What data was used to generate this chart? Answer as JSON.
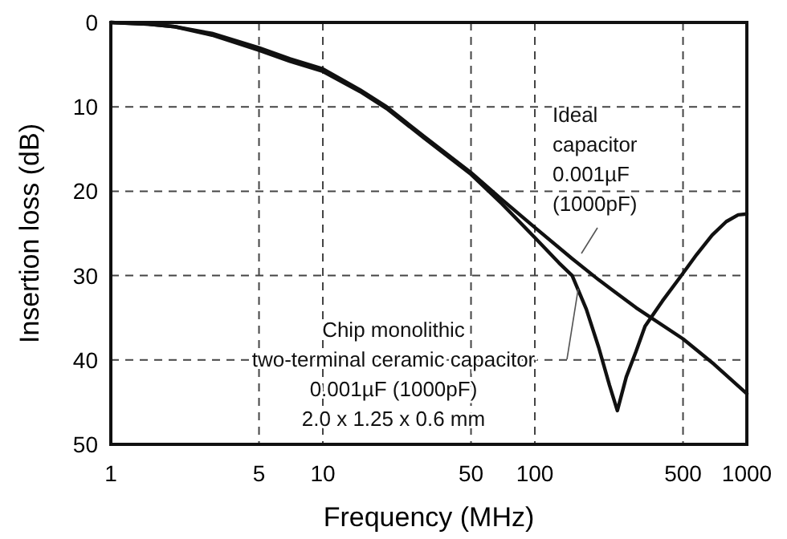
{
  "chart_data": {
    "type": "line",
    "xlabel": "Frequency (MHz)",
    "ylabel": "Insertion loss (dB)",
    "log": "x",
    "xlim": [
      1,
      1000
    ],
    "xticks": [
      1,
      5,
      10,
      50,
      100,
      500,
      1000
    ],
    "ylim": [
      50,
      0
    ],
    "yticks": [
      0,
      10,
      20,
      30,
      40,
      50
    ],
    "grid": true,
    "line_style": "solid",
    "series": [
      {
        "color": "#111111",
        "x": [
          1,
          1.5,
          2,
          3,
          5,
          7,
          10,
          15,
          20,
          30,
          50,
          70,
          100,
          150,
          200,
          300,
          500,
          700,
          1000
        ],
        "values": [
          0,
          0.2,
          0.5,
          1.3,
          3,
          4.3,
          5.5,
          8,
          10,
          13.5,
          17.8,
          21,
          24.3,
          28,
          30.5,
          33.8,
          37.5,
          40.5,
          44
        ]
      },
      {
        "color": "#111111",
        "x": [
          1,
          1.5,
          2,
          3,
          5,
          7,
          10,
          15,
          20,
          30,
          50,
          70,
          100,
          130,
          150,
          175,
          200,
          225,
          245,
          270,
          300,
          331,
          400,
          484,
          580,
          686,
          800,
          910,
          1000
        ],
        "values": [
          0,
          0.2,
          0.5,
          1.5,
          3.3,
          4.6,
          5.8,
          8.2,
          10.2,
          13.7,
          18,
          21.5,
          25.5,
          28.5,
          30,
          34,
          38.5,
          43,
          46,
          42,
          39,
          36,
          33,
          30.2,
          27.5,
          25.2,
          23.6,
          22.8,
          22.7
        ]
      }
    ],
    "annotations": [
      "Ideal\ncapacitor\n0.001µF\n(1000pF)",
      "Chip monolithic\ntwo-terminal ceramic capacitor\n0.001µF (1000pF)\n2.0 x 1.25 x 0.6 mm"
    ]
  }
}
